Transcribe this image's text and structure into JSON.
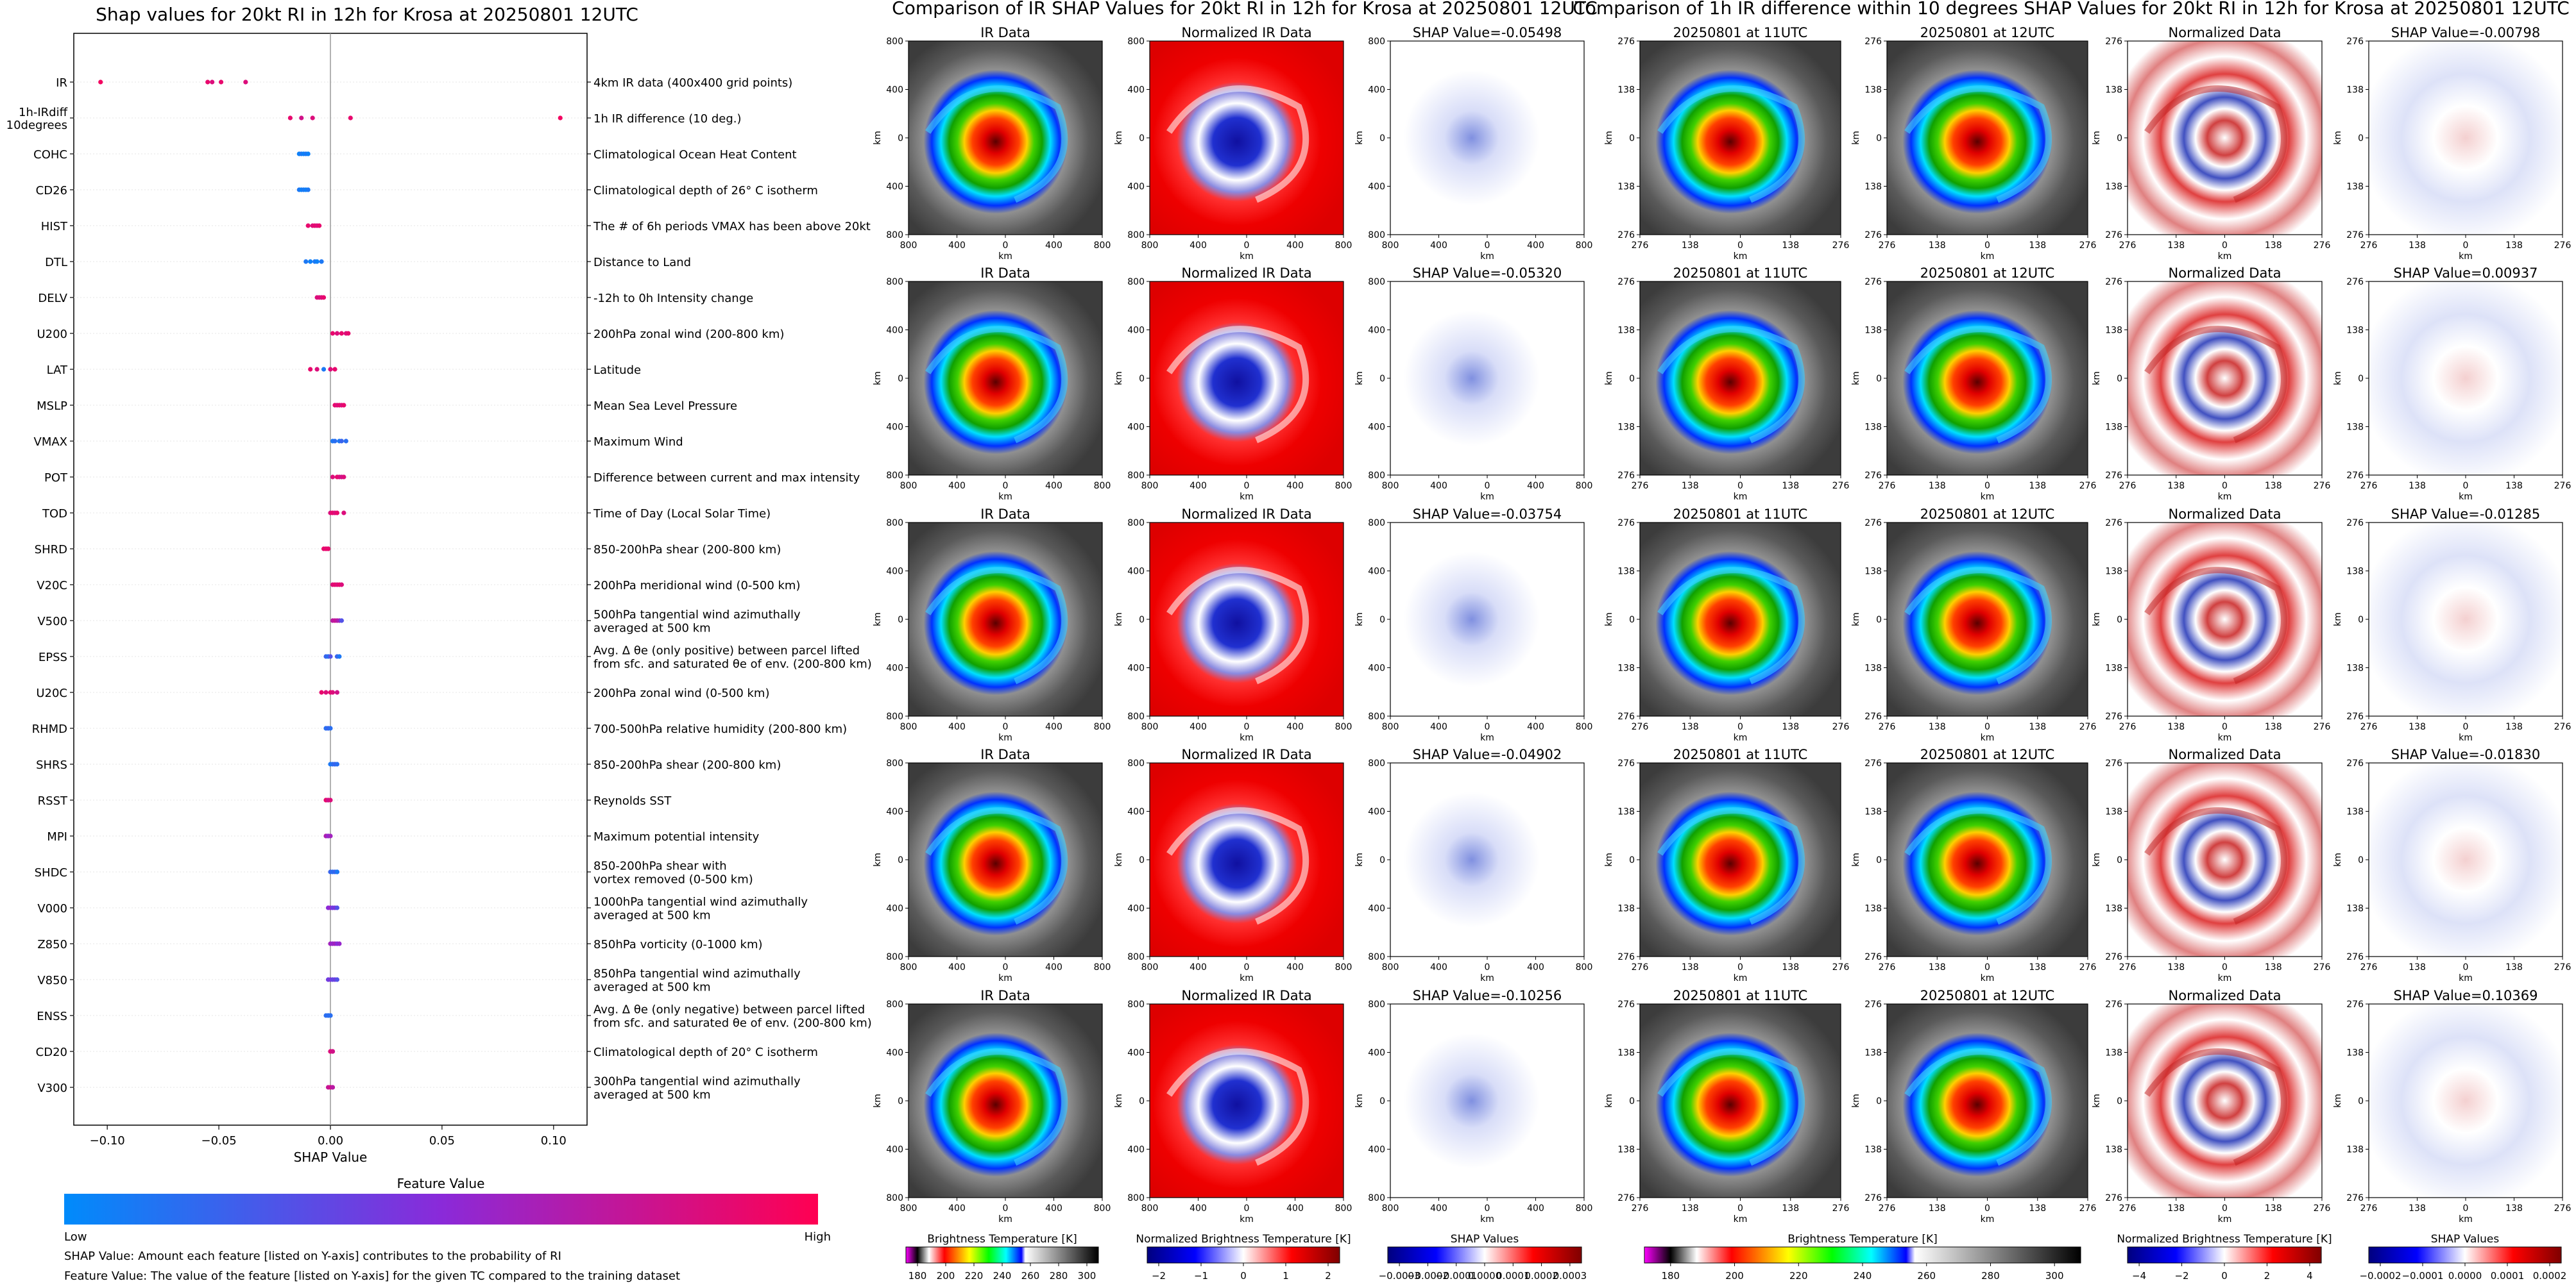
{
  "left_panel": {
    "title": "Shap values for 20kt RI in 12h for Krosa at 20250801 12UTC",
    "xlabel": "SHAP Value",
    "xlim": [
      -0.115,
      0.115
    ],
    "xticks": [
      -0.1,
      -0.05,
      0.0,
      0.05,
      0.1
    ],
    "xtick_labels": [
      "−0.10",
      "−0.05",
      "0.00",
      "0.05",
      "0.10"
    ],
    "colorbar": {
      "title": "Feature Value",
      "low_label": "Low",
      "high_label": "High",
      "low_color": "#008bfb",
      "high_color": "#ff0052"
    },
    "notes": [
      "SHAP Value: Amount each feature [listed on Y-axis] contributes to the probability of RI",
      "Feature Value: The value of the feature [listed on Y-axis] for the given TC compared to the training dataset"
    ]
  },
  "chart_data": {
    "type": "scatter",
    "title": "Shap values for 20kt RI in 12h for Krosa at 20250801 12UTC",
    "xlabel": "SHAP Value",
    "xlim": [
      -0.115,
      0.115
    ],
    "features": [
      {
        "name": [
          "IR"
        ],
        "desc": [
          "4km IR data (400x400 grid points)"
        ],
        "points": [
          [
            -0.103,
            0.95
          ],
          [
            -0.055,
            0.9
          ],
          [
            -0.053,
            0.85
          ],
          [
            -0.049,
            0.9
          ],
          [
            -0.038,
            0.85
          ]
        ]
      },
      {
        "name": [
          "1h-IRdiff",
          "10degrees"
        ],
        "desc": [
          "1h IR difference (10 deg.)"
        ],
        "points": [
          [
            -0.018,
            0.9
          ],
          [
            -0.013,
            0.8
          ],
          [
            -0.008,
            0.85
          ],
          [
            0.009,
            0.9
          ],
          [
            0.103,
            0.95
          ]
        ]
      },
      {
        "name": [
          "COHC"
        ],
        "desc": [
          "Climatological Ocean Heat Content"
        ],
        "points": [
          [
            -0.014,
            0.05
          ],
          [
            -0.013,
            0.1
          ],
          [
            -0.012,
            0.05
          ],
          [
            -0.011,
            0.1
          ],
          [
            -0.01,
            0.05
          ]
        ]
      },
      {
        "name": [
          "CD26"
        ],
        "desc": [
          "Climatological depth of 26° C isotherm"
        ],
        "points": [
          [
            -0.014,
            0.1
          ],
          [
            -0.013,
            0.05
          ],
          [
            -0.012,
            0.1
          ],
          [
            -0.011,
            0.05
          ],
          [
            -0.01,
            0.1
          ]
        ]
      },
      {
        "name": [
          "HIST"
        ],
        "desc": [
          "The # of 6h periods VMAX has been above 20kt"
        ],
        "points": [
          [
            -0.01,
            0.9
          ],
          [
            -0.008,
            0.85
          ],
          [
            -0.007,
            0.9
          ],
          [
            -0.006,
            0.85
          ],
          [
            -0.005,
            0.9
          ]
        ]
      },
      {
        "name": [
          "DTL"
        ],
        "desc": [
          "Distance to Land"
        ],
        "points": [
          [
            -0.011,
            0.1
          ],
          [
            -0.009,
            0.05
          ],
          [
            -0.007,
            0.1
          ],
          [
            -0.006,
            0.05
          ],
          [
            -0.004,
            0.1
          ]
        ]
      },
      {
        "name": [
          "DELV"
        ],
        "desc": [
          "-12h to 0h Intensity change"
        ],
        "points": [
          [
            -0.006,
            0.85
          ],
          [
            -0.005,
            0.85
          ],
          [
            -0.004,
            0.9
          ],
          [
            -0.004,
            0.85
          ],
          [
            -0.003,
            0.9
          ]
        ]
      },
      {
        "name": [
          "U200"
        ],
        "desc": [
          "200hPa zonal wind (200-800 km)"
        ],
        "points": [
          [
            0.001,
            0.9
          ],
          [
            0.003,
            0.85
          ],
          [
            0.005,
            0.9
          ],
          [
            0.007,
            0.85
          ],
          [
            0.008,
            0.9
          ]
        ]
      },
      {
        "name": [
          "LAT"
        ],
        "desc": [
          "Latitude"
        ],
        "points": [
          [
            -0.009,
            0.9
          ],
          [
            -0.006,
            0.85
          ],
          [
            -0.003,
            0.1
          ],
          [
            0.0,
            0.85
          ],
          [
            0.002,
            0.9
          ]
        ]
      },
      {
        "name": [
          "MSLP"
        ],
        "desc": [
          "Mean Sea Level Pressure"
        ],
        "points": [
          [
            0.002,
            0.9
          ],
          [
            0.003,
            0.85
          ],
          [
            0.004,
            0.9
          ],
          [
            0.005,
            0.85
          ],
          [
            0.006,
            0.9
          ]
        ]
      },
      {
        "name": [
          "VMAX"
        ],
        "desc": [
          "Maximum Wind"
        ],
        "points": [
          [
            0.001,
            0.1
          ],
          [
            0.002,
            0.15
          ],
          [
            0.004,
            0.1
          ],
          [
            0.005,
            0.2
          ],
          [
            0.007,
            0.15
          ]
        ]
      },
      {
        "name": [
          "POT"
        ],
        "desc": [
          "Difference between current and max intensity"
        ],
        "points": [
          [
            0.001,
            0.85
          ],
          [
            0.003,
            0.9
          ],
          [
            0.004,
            0.85
          ],
          [
            0.005,
            0.8
          ],
          [
            0.006,
            0.85
          ]
        ]
      },
      {
        "name": [
          "TOD"
        ],
        "desc": [
          "Time of Day (Local Solar Time)"
        ],
        "points": [
          [
            0.0,
            0.85
          ],
          [
            0.001,
            0.9
          ],
          [
            0.002,
            0.85
          ],
          [
            0.003,
            0.9
          ],
          [
            0.006,
            0.85
          ]
        ]
      },
      {
        "name": [
          "SHRD"
        ],
        "desc": [
          "850-200hPa shear (200-800 km)"
        ],
        "points": [
          [
            -0.003,
            0.9
          ],
          [
            -0.002,
            0.85
          ],
          [
            -0.002,
            0.9
          ],
          [
            -0.001,
            0.85
          ],
          [
            -0.001,
            0.9
          ]
        ]
      },
      {
        "name": [
          "V20C"
        ],
        "desc": [
          "200hPa meridional wind (0-500 km)"
        ],
        "points": [
          [
            0.001,
            0.85
          ],
          [
            0.002,
            0.9
          ],
          [
            0.003,
            0.85
          ],
          [
            0.004,
            0.9
          ],
          [
            0.005,
            0.85
          ]
        ]
      },
      {
        "name": [
          "V500"
        ],
        "desc": [
          "500hPa tangential wind azimuthally",
          "averaged at 500 km"
        ],
        "points": [
          [
            0.001,
            0.7
          ],
          [
            0.002,
            0.75
          ],
          [
            0.003,
            0.7
          ],
          [
            0.004,
            0.6
          ],
          [
            0.005,
            0.3
          ]
        ]
      },
      {
        "name": [
          "EPSS"
        ],
        "desc": [
          "Avg. Δ θe (only positive) between parcel lifted",
          "from sfc. and saturated θe of env. (200-800 km)"
        ],
        "points": [
          [
            -0.002,
            0.2
          ],
          [
            -0.001,
            0.15
          ],
          [
            0.0,
            0.3
          ],
          [
            0.003,
            0.2
          ],
          [
            0.004,
            0.1
          ]
        ]
      },
      {
        "name": [
          "U20C"
        ],
        "desc": [
          "200hPa zonal wind (0-500 km)"
        ],
        "points": [
          [
            -0.004,
            0.9
          ],
          [
            -0.002,
            0.85
          ],
          [
            0.0,
            0.9
          ],
          [
            0.001,
            0.85
          ],
          [
            0.003,
            0.8
          ]
        ]
      },
      {
        "name": [
          "RHMD"
        ],
        "desc": [
          "700-500hPa relative humidity (200-800 km)"
        ],
        "points": [
          [
            -0.002,
            0.1
          ],
          [
            -0.002,
            0.15
          ],
          [
            -0.001,
            0.1
          ],
          [
            -0.001,
            0.2
          ],
          [
            0.0,
            0.15
          ]
        ]
      },
      {
        "name": [
          "SHRS"
        ],
        "desc": [
          "850-200hPa shear (200-800 km)"
        ],
        "points": [
          [
            0.0,
            0.1
          ],
          [
            0.001,
            0.15
          ],
          [
            0.002,
            0.1
          ],
          [
            0.002,
            0.2
          ],
          [
            0.003,
            0.15
          ]
        ]
      },
      {
        "name": [
          "RSST"
        ],
        "desc": [
          "Reynolds SST"
        ],
        "points": [
          [
            -0.002,
            0.85
          ],
          [
            -0.002,
            0.9
          ],
          [
            -0.001,
            0.85
          ],
          [
            -0.001,
            0.8
          ],
          [
            0.0,
            0.85
          ]
        ]
      },
      {
        "name": [
          "MPI"
        ],
        "desc": [
          "Maximum potential intensity"
        ],
        "points": [
          [
            -0.002,
            0.6
          ],
          [
            -0.002,
            0.65
          ],
          [
            -0.001,
            0.6
          ],
          [
            -0.001,
            0.55
          ],
          [
            0.0,
            0.6
          ]
        ]
      },
      {
        "name": [
          "SHDC"
        ],
        "desc": [
          "850-200hPa shear with",
          "vortex removed (0-500 km)"
        ],
        "points": [
          [
            0.0,
            0.2
          ],
          [
            0.001,
            0.15
          ],
          [
            0.002,
            0.2
          ],
          [
            0.003,
            0.15
          ],
          [
            0.003,
            0.1
          ]
        ]
      },
      {
        "name": [
          "V000"
        ],
        "desc": [
          "1000hPa tangential wind azimuthally",
          "averaged at 500 km"
        ],
        "points": [
          [
            -0.001,
            0.5
          ],
          [
            0.0,
            0.55
          ],
          [
            0.001,
            0.4
          ],
          [
            0.002,
            0.45
          ],
          [
            0.003,
            0.3
          ]
        ]
      },
      {
        "name": [
          "Z850"
        ],
        "desc": [
          "850hPa vorticity (0-1000 km)"
        ],
        "points": [
          [
            0.0,
            0.6
          ],
          [
            0.001,
            0.55
          ],
          [
            0.002,
            0.6
          ],
          [
            0.003,
            0.5
          ],
          [
            0.004,
            0.55
          ]
        ]
      },
      {
        "name": [
          "V850"
        ],
        "desc": [
          "850hPa tangential wind azimuthally",
          "averaged at 500 km"
        ],
        "points": [
          [
            -0.001,
            0.4
          ],
          [
            0.0,
            0.45
          ],
          [
            0.001,
            0.35
          ],
          [
            0.002,
            0.4
          ],
          [
            0.003,
            0.3
          ]
        ]
      },
      {
        "name": [
          "ENSS"
        ],
        "desc": [
          "Avg. Δ θe (only negative) between parcel lifted",
          "from sfc. and saturated θe of env. (200-800 km)"
        ],
        "points": [
          [
            -0.002,
            0.15
          ],
          [
            -0.001,
            0.2
          ],
          [
            -0.001,
            0.15
          ],
          [
            0.0,
            0.1
          ],
          [
            0.0,
            0.15
          ]
        ]
      },
      {
        "name": [
          "CD20"
        ],
        "desc": [
          "Climatological depth of 20° C isotherm"
        ],
        "points": [
          [
            0.0,
            0.9
          ],
          [
            0.0,
            0.85
          ],
          [
            0.001,
            0.9
          ],
          [
            0.001,
            0.85
          ],
          [
            0.001,
            0.8
          ]
        ]
      },
      {
        "name": [
          "V300"
        ],
        "desc": [
          "300hPa tangential wind azimuthally",
          "averaged at 500 km"
        ],
        "points": [
          [
            -0.001,
            0.75
          ],
          [
            0.0,
            0.7
          ],
          [
            0.0,
            0.8
          ],
          [
            0.001,
            0.75
          ],
          [
            0.001,
            0.7
          ]
        ]
      }
    ]
  },
  "middle_section": {
    "title": "Comparison of IR SHAP Values for 20kt RI in 12h for Krosa at 20250801 12UTC",
    "column_titles": [
      "IR Data",
      "Normalized IR Data"
    ],
    "shap_titles": [
      "SHAP Value=-0.05498",
      "SHAP Value=-0.05320",
      "SHAP Value=-0.03754",
      "SHAP Value=-0.04902",
      "SHAP Value=-0.10256"
    ],
    "ylabel": "km",
    "xlabel": "km",
    "yticks": [
      "800",
      "400",
      "0",
      "400",
      "800"
    ],
    "xticks": [
      "800",
      "400",
      "0",
      "400",
      "800"
    ],
    "colorbars": [
      {
        "label": "Brightness Temperature [K]",
        "ticks": [
          "180",
          "200",
          "220",
          "240",
          "260",
          "280",
          "300"
        ]
      },
      {
        "label": "Normalized Brightness Temperature [K]",
        "ticks": [
          "−2",
          "−1",
          "0",
          "1",
          "2"
        ]
      },
      {
        "label": "SHAP Values",
        "ticks": [
          "−0.0003",
          "−0.0002",
          "−0.0001",
          "0.0000",
          "0.0001",
          "0.0002",
          "0.0003"
        ]
      }
    ]
  },
  "right_section": {
    "title": "Comparison of 1h IR difference within 10 degrees SHAP Values for 20kt RI in 12h for Krosa at 20250801 12UTC",
    "column_titles": [
      "20250801 at 11UTC",
      "20250801 at 12UTC",
      "Normalized Data"
    ],
    "shap_titles": [
      "SHAP Value=-0.00798",
      "SHAP Value=0.00937",
      "SHAP Value=-0.01285",
      "SHAP Value=-0.01830",
      "SHAP Value=0.10369"
    ],
    "ylabel": "km",
    "xlabel": "km",
    "yticks": [
      "276",
      "138",
      "0",
      "138",
      "276"
    ],
    "xticks": [
      "276",
      "138",
      "0",
      "138",
      "276"
    ],
    "colorbars": [
      {
        "label": "Brightness Temperature [K]",
        "ticks": [
          "180",
          "200",
          "220",
          "240",
          "260",
          "280",
          "300"
        ]
      },
      {
        "label": "Normalized Brightness Temperature [K]",
        "ticks": [
          "−4",
          "−2",
          "0",
          "2",
          "4"
        ]
      },
      {
        "label": "SHAP Values",
        "ticks": [
          "−0.0002",
          "−0.0001",
          "0.0000",
          "0.0001",
          "0.0002"
        ]
      }
    ]
  }
}
